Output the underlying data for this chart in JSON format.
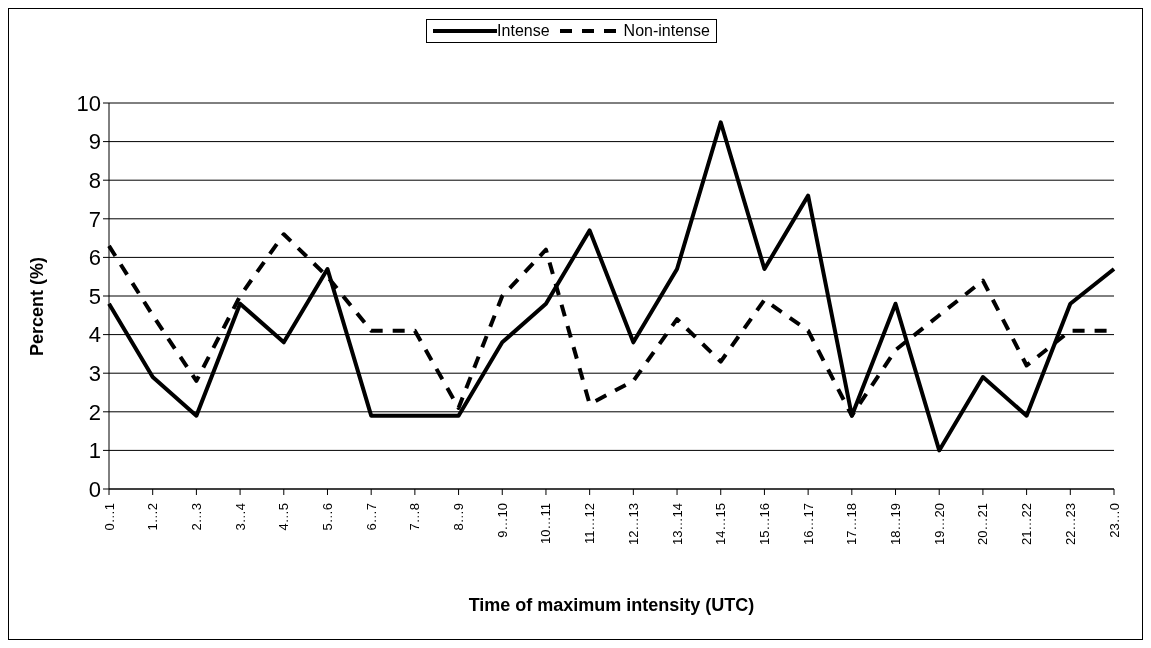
{
  "chart_data": {
    "type": "line",
    "xlabel": "Time of maximum intensity (UTC)",
    "ylabel": "Percent (%)",
    "categories": [
      "0…1",
      "1…2",
      "2…3",
      "3…4",
      "4…5",
      "5…6",
      "6…7",
      "7…8",
      "8…9",
      "9…10",
      "10…11",
      "11…12",
      "12…13",
      "13…14",
      "14…15",
      "15…16",
      "16…17",
      "17…18",
      "18…19",
      "19…20",
      "20…21",
      "21…22",
      "22…23",
      "23…0"
    ],
    "series": [
      {
        "name": "Intense",
        "color": "#000000",
        "line_style": "solid",
        "values": [
          4.8,
          2.9,
          1.9,
          4.8,
          3.8,
          5.7,
          1.9,
          1.9,
          1.9,
          3.8,
          4.8,
          6.7,
          3.8,
          5.7,
          9.5,
          5.7,
          7.6,
          1.9,
          4.8,
          1.0,
          2.9,
          1.9,
          4.8,
          5.7
        ]
      },
      {
        "name": "Non-intense",
        "color": "#000000",
        "line_style": "dashed",
        "values": [
          6.3,
          4.5,
          2.8,
          5.0,
          6.6,
          5.5,
          4.1,
          4.1,
          2.1,
          5.0,
          6.2,
          2.2,
          2.8,
          4.4,
          3.3,
          4.9,
          4.1,
          1.9,
          3.6,
          4.5,
          5.4,
          3.2,
          4.1,
          4.1
        ]
      }
    ],
    "ylim": [
      0,
      10
    ],
    "yticks": [
      0,
      1,
      2,
      3,
      4,
      5,
      6,
      7,
      8,
      9,
      10
    ],
    "grid": "y",
    "legend": "top",
    "marker": "none"
  }
}
